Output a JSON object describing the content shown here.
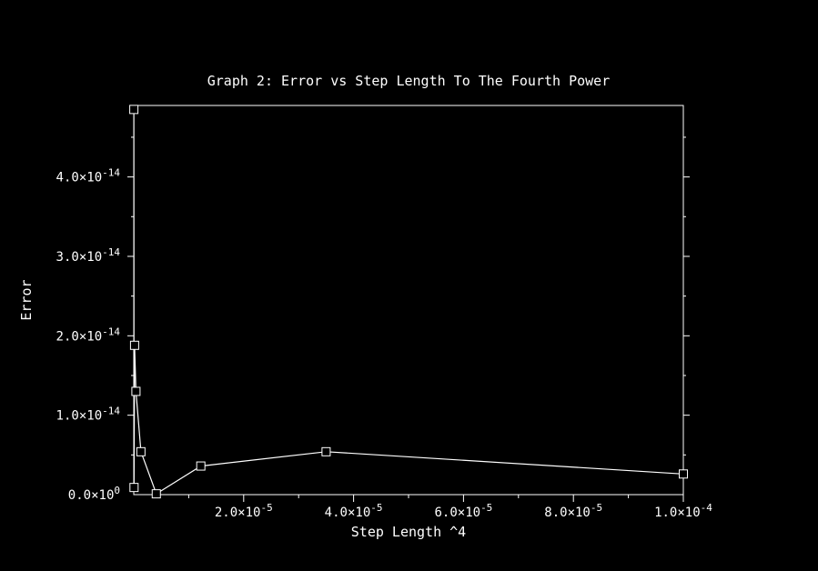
{
  "chart_data": {
    "type": "line",
    "title": "Graph 2: Error vs Step Length To The Fourth Power",
    "xlabel": "Step Length ^4",
    "ylabel": "Error",
    "xlim": [
      0,
      0.0001
    ],
    "ylim": [
      0,
      4.9e-14
    ],
    "xticks": [
      {
        "value": 2e-05,
        "mant": "2.0",
        "exp": "-5"
      },
      {
        "value": 4e-05,
        "mant": "4.0",
        "exp": "-5"
      },
      {
        "value": 6e-05,
        "mant": "6.0",
        "exp": "-5"
      },
      {
        "value": 8e-05,
        "mant": "8.0",
        "exp": "-5"
      },
      {
        "value": 0.0001,
        "mant": "1.0",
        "exp": "-4"
      }
    ],
    "yticks": [
      {
        "value": 0,
        "mant": "0.0",
        "exp": "0"
      },
      {
        "value": 1e-14,
        "mant": "1.0",
        "exp": "-14"
      },
      {
        "value": 2e-14,
        "mant": "2.0",
        "exp": "-14"
      },
      {
        "value": 3e-14,
        "mant": "3.0",
        "exp": "-14"
      },
      {
        "value": 4e-14,
        "mant": "4.0",
        "exp": "-14"
      }
    ],
    "x_minor_step": 1e-05,
    "y_minor_step": 5e-15,
    "grid": false,
    "marker": "square",
    "series": [
      {
        "x": [
          0.0001,
          3.5e-05,
          1.22e-05,
          4.1e-06,
          1.3e-06,
          4e-07,
          1.5e-07,
          5e-08,
          1.5e-08
        ],
        "y": [
          2.6e-15,
          5.4e-15,
          3.6e-15,
          1e-16,
          5.4e-15,
          1.3e-14,
          1.88e-14,
          9e-16,
          4.85e-14
        ]
      }
    ],
    "colors": {
      "background": "#000000",
      "foreground": "#ffffff"
    }
  }
}
